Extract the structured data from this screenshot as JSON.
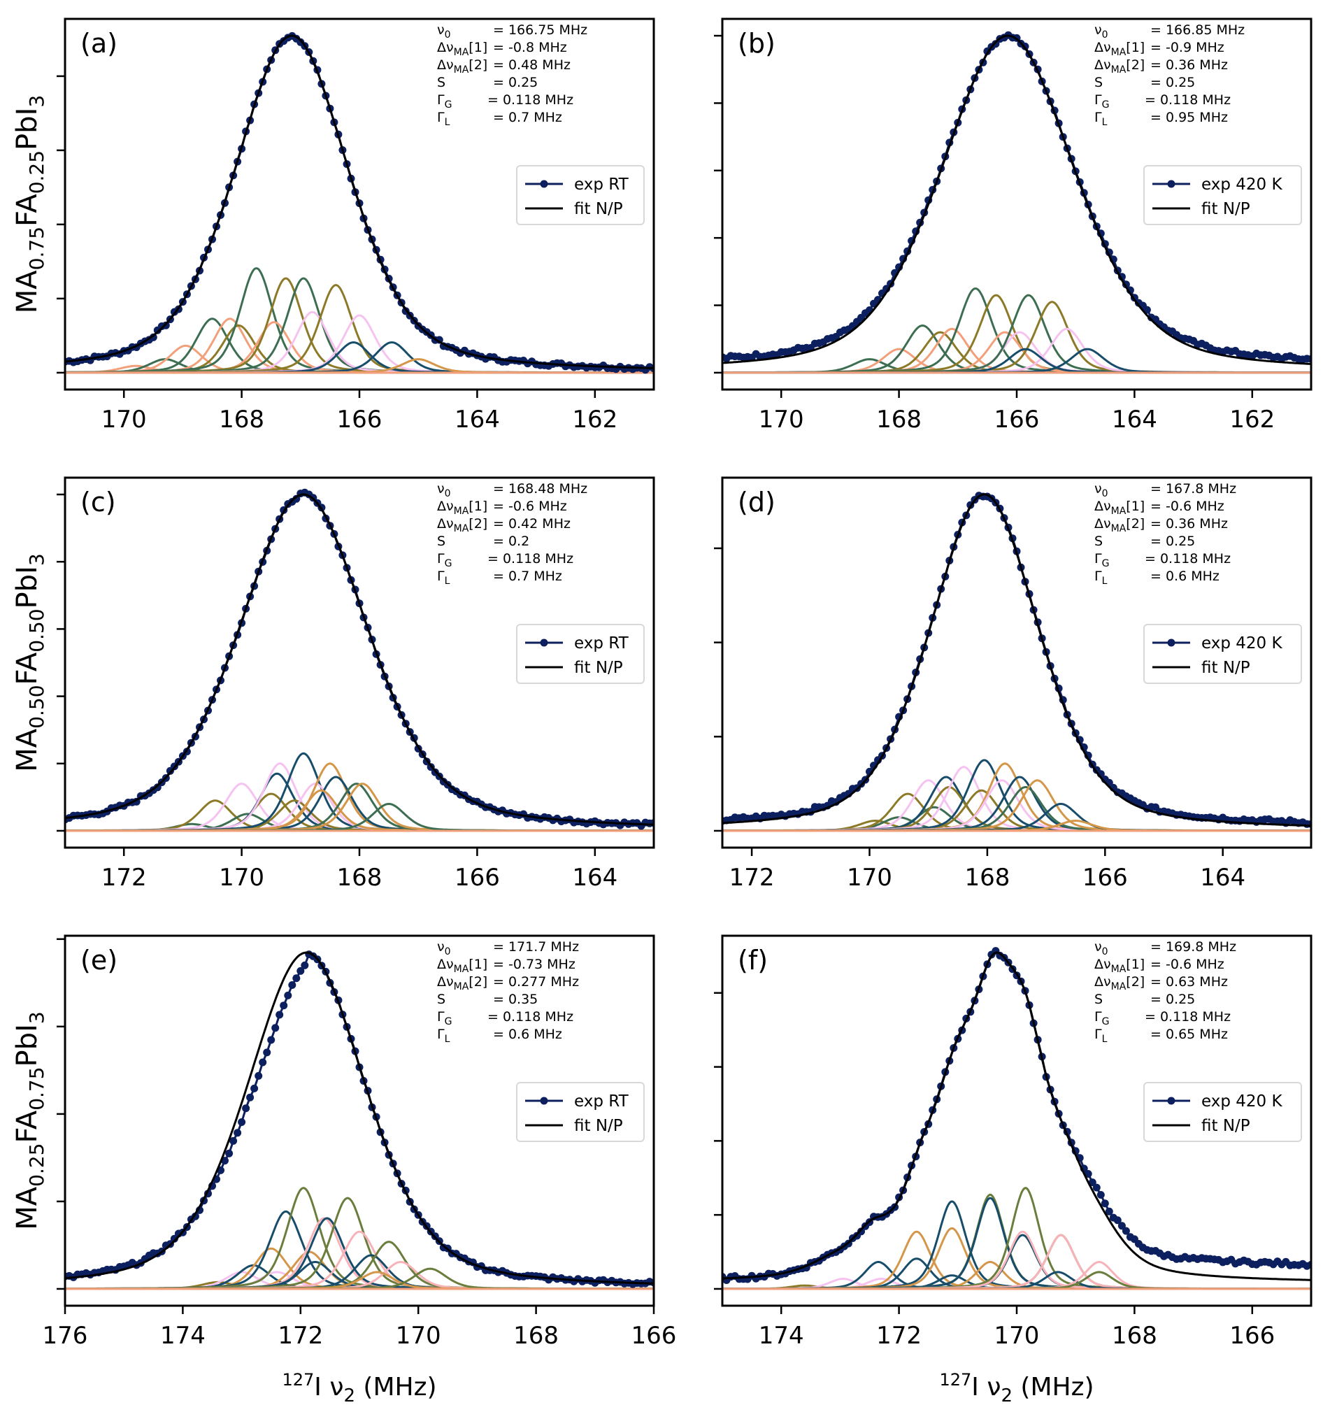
{
  "figure": {
    "colors": {
      "exp": "#0c1f5e",
      "fit": "#000000",
      "components": [
        "#3d6e52",
        "#8c7a28",
        "#f2a07b",
        "#f6c3f0",
        "#174d6b",
        "#d4974a",
        "#6a7d3c",
        "#f7b3b9"
      ]
    },
    "row_labels": [
      {
        "base": "MA",
        "sub1": "0.75",
        "mid": "FA",
        "sub2": "0.25",
        "end": "PbI",
        "sub3": "3"
      },
      {
        "base": "MA",
        "sub1": "0.50",
        "mid": "FA",
        "sub2": "0.50",
        "end": "PbI",
        "sub3": "3"
      },
      {
        "base": "MA",
        "sub1": "0.25",
        "mid": "FA",
        "sub2": "0.75",
        "end": "PbI",
        "sub3": "3"
      }
    ],
    "xlabel": {
      "sup": "127",
      "main": "I ν",
      "sub": "2",
      "unit": " (MHz)"
    }
  },
  "chart_data": [
    {
      "id": "a",
      "tag": "(a)",
      "type": "line",
      "xlim": [
        171,
        161
      ],
      "xticks": [
        170,
        168,
        166,
        164,
        162
      ],
      "ylim": [
        -0.05,
        1.05
      ],
      "yticks": [
        0,
        0.22,
        0.44,
        0.66,
        0.88
      ],
      "params": [
        {
          "name": "ν0",
          "value": "= 166.75 MHz"
        },
        {
          "name": "ΔνMA[1]",
          "value": "= -0.8 MHz"
        },
        {
          "name": "ΔνMA[2]",
          "value": "= 0.48 MHz"
        },
        {
          "name": "S",
          "value": "= 0.25"
        },
        {
          "name": "ΓG",
          "value": "= 0.118 MHz"
        },
        {
          "name": "ΓL",
          "value": "= 0.7 MHz"
        }
      ],
      "legend": [
        "exp RT",
        "fit N/P"
      ],
      "envelope": {
        "center": 167.15,
        "height": 1.0,
        "width": 1.15,
        "baseline": 0.04
      },
      "exp_offset": 0.0,
      "components": [
        {
          "c": 169.8,
          "h": 0.02,
          "color": 2
        },
        {
          "c": 169.3,
          "h": 0.04,
          "color": 0
        },
        {
          "c": 168.95,
          "h": 0.08,
          "color": 2
        },
        {
          "c": 168.5,
          "h": 0.16,
          "color": 0
        },
        {
          "c": 168.2,
          "h": 0.16,
          "color": 2
        },
        {
          "c": 168.05,
          "h": 0.14,
          "color": 1
        },
        {
          "c": 167.75,
          "h": 0.31,
          "color": 0
        },
        {
          "c": 167.45,
          "h": 0.15,
          "color": 2
        },
        {
          "c": 167.25,
          "h": 0.28,
          "color": 1
        },
        {
          "c": 166.95,
          "h": 0.28,
          "color": 0
        },
        {
          "c": 166.8,
          "h": 0.18,
          "color": 3
        },
        {
          "c": 166.4,
          "h": 0.26,
          "color": 1
        },
        {
          "c": 166.0,
          "h": 0.17,
          "color": 3
        },
        {
          "c": 166.1,
          "h": 0.09,
          "color": 4
        },
        {
          "c": 165.45,
          "h": 0.09,
          "color": 4
        },
        {
          "c": 165.0,
          "h": 0.04,
          "color": 5
        }
      ]
    },
    {
      "id": "b",
      "tag": "(b)",
      "type": "line",
      "xlim": [
        171,
        161
      ],
      "xticks": [
        170,
        168,
        166,
        164,
        162
      ],
      "ylim": [
        -0.05,
        1.05
      ],
      "yticks": [
        0,
        0.2,
        0.4,
        0.6,
        0.8,
        1.0
      ],
      "params": [
        {
          "name": "ν0",
          "value": "= 166.85 MHz"
        },
        {
          "name": "ΔνMA[1]",
          "value": "= -0.9 MHz"
        },
        {
          "name": "ΔνMA[2]",
          "value": "= 0.36 MHz"
        },
        {
          "name": "S",
          "value": "= 0.25"
        },
        {
          "name": "ΓG",
          "value": "= 0.118 MHz"
        },
        {
          "name": "ΓL",
          "value": "= 0.95 MHz"
        }
      ],
      "legend": [
        "exp 420 K",
        "fit N/P"
      ],
      "envelope": {
        "center": 166.15,
        "height": 1.0,
        "width": 1.35,
        "baseline": 0.04
      },
      "exp_offset": 0.015,
      "components": [
        {
          "c": 168.5,
          "h": 0.04,
          "color": 0
        },
        {
          "c": 168.0,
          "h": 0.07,
          "color": 2
        },
        {
          "c": 167.6,
          "h": 0.14,
          "color": 0
        },
        {
          "c": 167.3,
          "h": 0.12,
          "color": 1
        },
        {
          "c": 167.1,
          "h": 0.13,
          "color": 2
        },
        {
          "c": 166.7,
          "h": 0.25,
          "color": 0
        },
        {
          "c": 166.35,
          "h": 0.23,
          "color": 1
        },
        {
          "c": 166.2,
          "h": 0.12,
          "color": 2
        },
        {
          "c": 165.95,
          "h": 0.12,
          "color": 3
        },
        {
          "c": 165.8,
          "h": 0.23,
          "color": 0
        },
        {
          "c": 165.4,
          "h": 0.21,
          "color": 1
        },
        {
          "c": 165.15,
          "h": 0.13,
          "color": 3
        },
        {
          "c": 165.85,
          "h": 0.07,
          "color": 4
        },
        {
          "c": 164.8,
          "h": 0.07,
          "color": 4
        }
      ]
    },
    {
      "id": "c",
      "tag": "(c)",
      "type": "line",
      "xlim": [
        173,
        163
      ],
      "xticks": [
        172,
        170,
        168,
        166,
        164
      ],
      "ylim": [
        -0.05,
        1.05
      ],
      "yticks": [
        0,
        0.2,
        0.4,
        0.6,
        0.8,
        1.0
      ],
      "params": [
        {
          "name": "ν0",
          "value": "= 168.48 MHz"
        },
        {
          "name": "ΔνMA[1]",
          "value": "= -0.6 MHz"
        },
        {
          "name": "ΔνMA[2]",
          "value": "= 0.42 MHz"
        },
        {
          "name": "S",
          "value": "= 0.2"
        },
        {
          "name": "ΓG",
          "value": "= 0.118 MHz"
        },
        {
          "name": "ΓL",
          "value": "= 0.7 MHz"
        }
      ],
      "legend": [
        "exp RT",
        "fit N/P"
      ],
      "envelope": {
        "center": 168.95,
        "height": 1.0,
        "width": 1.3,
        "baseline": 0.02
      },
      "exp_offset": 0.0,
      "components": [
        {
          "c": 170.85,
          "h": 0.02,
          "color": 0
        },
        {
          "c": 170.45,
          "h": 0.09,
          "color": 1
        },
        {
          "c": 170.0,
          "h": 0.14,
          "color": 3
        },
        {
          "c": 169.9,
          "h": 0.05,
          "color": 0
        },
        {
          "c": 169.5,
          "h": 0.11,
          "color": 1
        },
        {
          "c": 169.4,
          "h": 0.17,
          "color": 4
        },
        {
          "c": 169.35,
          "h": 0.2,
          "color": 3
        },
        {
          "c": 169.1,
          "h": 0.09,
          "color": 1
        },
        {
          "c": 168.95,
          "h": 0.23,
          "color": 4
        },
        {
          "c": 168.75,
          "h": 0.14,
          "color": 3
        },
        {
          "c": 168.5,
          "h": 0.2,
          "color": 5
        },
        {
          "c": 168.4,
          "h": 0.16,
          "color": 4
        },
        {
          "c": 168.65,
          "h": 0.12,
          "color": 5
        },
        {
          "c": 168.05,
          "h": 0.14,
          "color": 0
        },
        {
          "c": 167.95,
          "h": 0.14,
          "color": 5
        },
        {
          "c": 167.5,
          "h": 0.08,
          "color": 0
        }
      ]
    },
    {
      "id": "d",
      "tag": "(d)",
      "type": "line",
      "xlim": [
        172.5,
        162.5
      ],
      "xticks": [
        172,
        170,
        168,
        166,
        164
      ],
      "ylim": [
        -0.05,
        1.05
      ],
      "yticks": [
        0,
        0.28,
        0.56,
        0.84
      ],
      "params": [
        {
          "name": "ν0",
          "value": "= 167.8 MHz"
        },
        {
          "name": "ΔνMA[1]",
          "value": "= -0.6 MHz"
        },
        {
          "name": "ΔνMA[2]",
          "value": "= 0.36 MHz"
        },
        {
          "name": "S",
          "value": "= 0.25"
        },
        {
          "name": "ΓG",
          "value": "= 0.118 MHz"
        },
        {
          "name": "ΓL",
          "value": "= 0.6 MHz"
        }
      ],
      "legend": [
        "exp 420 K",
        "fit N/P"
      ],
      "envelope": {
        "center": 168.05,
        "height": 1.0,
        "width": 1.1,
        "baseline": 0.02
      },
      "exp_offset": 0.01,
      "components": [
        {
          "c": 169.9,
          "h": 0.03,
          "color": 1
        },
        {
          "c": 169.5,
          "h": 0.04,
          "color": 0
        },
        {
          "c": 169.35,
          "h": 0.11,
          "color": 1
        },
        {
          "c": 169.0,
          "h": 0.15,
          "color": 3
        },
        {
          "c": 168.9,
          "h": 0.07,
          "color": 0
        },
        {
          "c": 168.7,
          "h": 0.16,
          "color": 4
        },
        {
          "c": 168.65,
          "h": 0.13,
          "color": 1
        },
        {
          "c": 168.4,
          "h": 0.19,
          "color": 3
        },
        {
          "c": 168.1,
          "h": 0.12,
          "color": 1
        },
        {
          "c": 168.05,
          "h": 0.21,
          "color": 4
        },
        {
          "c": 167.7,
          "h": 0.2,
          "color": 5
        },
        {
          "c": 167.75,
          "h": 0.15,
          "color": 3
        },
        {
          "c": 167.45,
          "h": 0.16,
          "color": 4
        },
        {
          "c": 167.35,
          "h": 0.13,
          "color": 0
        },
        {
          "c": 167.15,
          "h": 0.15,
          "color": 5
        },
        {
          "c": 166.75,
          "h": 0.08,
          "color": 4
        },
        {
          "c": 166.5,
          "h": 0.03,
          "color": 5
        }
      ]
    },
    {
      "id": "e",
      "tag": "(e)",
      "type": "line",
      "xlim": [
        176,
        166
      ],
      "xticks": [
        176,
        174,
        172,
        170,
        168,
        166
      ],
      "ylim": [
        -0.05,
        1.05
      ],
      "yticks": [
        0,
        0.26,
        0.52,
        0.78,
        1.04
      ],
      "params": [
        {
          "name": "ν0",
          "value": "= 171.7 MHz"
        },
        {
          "name": "ΔνMA[1]",
          "value": "= -0.73 MHz"
        },
        {
          "name": "ΔνMA[2]",
          "value": "= 0.277 MHz"
        },
        {
          "name": "S",
          "value": "= 0.35"
        },
        {
          "name": "ΓG",
          "value": "= 0.118 MHz"
        },
        {
          "name": "ΓL",
          "value": "= 0.6 MHz"
        }
      ],
      "legend": [
        "exp RT",
        "fit N/P"
      ],
      "envelope": {
        "center": 171.9,
        "height": 0.97,
        "width": 1.2,
        "baseline": 0.02
      },
      "exp_shift": -0.25,
      "exp_offset": 0.0,
      "components": [
        {
          "c": 173.4,
          "h": 0.02,
          "color": 1
        },
        {
          "c": 173.0,
          "h": 0.05,
          "color": 3
        },
        {
          "c": 172.8,
          "h": 0.07,
          "color": 4
        },
        {
          "c": 172.5,
          "h": 0.12,
          "color": 5
        },
        {
          "c": 172.25,
          "h": 0.23,
          "color": 4
        },
        {
          "c": 172.4,
          "h": 0.05,
          "color": 3
        },
        {
          "c": 171.95,
          "h": 0.3,
          "color": 6
        },
        {
          "c": 171.85,
          "h": 0.11,
          "color": 5
        },
        {
          "c": 171.75,
          "h": 0.08,
          "color": 4
        },
        {
          "c": 171.6,
          "h": 0.21,
          "color": 7
        },
        {
          "c": 171.55,
          "h": 0.21,
          "color": 4
        },
        {
          "c": 171.2,
          "h": 0.27,
          "color": 6
        },
        {
          "c": 171.0,
          "h": 0.17,
          "color": 7
        },
        {
          "c": 170.8,
          "h": 0.1,
          "color": 4
        },
        {
          "c": 170.5,
          "h": 0.14,
          "color": 6
        },
        {
          "c": 170.3,
          "h": 0.08,
          "color": 7
        },
        {
          "c": 170.7,
          "h": 0.05,
          "color": 5
        },
        {
          "c": 169.8,
          "h": 0.06,
          "color": 6
        }
      ]
    },
    {
      "id": "f",
      "tag": "(f)",
      "type": "line",
      "xlim": [
        175,
        165
      ],
      "xticks": [
        174,
        172,
        170,
        168,
        166
      ],
      "ylim": [
        -0.05,
        1.05
      ],
      "yticks": [
        0,
        0.22,
        0.44,
        0.66,
        0.88
      ],
      "params": [
        {
          "name": "ν0",
          "value": "= 169.8 MHz"
        },
        {
          "name": "ΔνMA[1]",
          "value": "= -0.6 MHz"
        },
        {
          "name": "ΔνMA[2]",
          "value": "= 0.63 MHz"
        },
        {
          "name": "S",
          "value": "= 0.25"
        },
        {
          "name": "ΓG",
          "value": "= 0.118 MHz"
        },
        {
          "name": "ΓL",
          "value": "= 0.65 MHz"
        }
      ],
      "legend": [
        "exp 420 K",
        "fit N/P"
      ],
      "multipeak": true,
      "fit_peaks": [
        {
          "c": 173.1,
          "h": 0.05,
          "w": 0.5
        },
        {
          "c": 172.45,
          "h": 0.11,
          "w": 0.35
        },
        {
          "c": 171.65,
          "h": 0.17,
          "w": 0.35
        },
        {
          "c": 171.05,
          "h": 0.33,
          "w": 0.4
        },
        {
          "c": 170.4,
          "h": 0.48,
          "w": 0.38
        },
        {
          "c": 169.85,
          "h": 0.43,
          "w": 0.38
        },
        {
          "c": 169.2,
          "h": 0.2,
          "w": 0.45
        },
        {
          "c": 168.6,
          "h": 0.1,
          "w": 0.5
        }
      ],
      "fit_baseline": 0.02,
      "exp_tail": 0.06,
      "components": [
        {
          "c": 173.6,
          "h": 0.01,
          "color": 1
        },
        {
          "c": 172.95,
          "h": 0.03,
          "color": 3
        },
        {
          "c": 172.35,
          "h": 0.08,
          "color": 4
        },
        {
          "c": 172.3,
          "h": 0.03,
          "color": 3
        },
        {
          "c": 171.7,
          "h": 0.17,
          "color": 5
        },
        {
          "c": 171.7,
          "h": 0.09,
          "color": 4
        },
        {
          "c": 171.1,
          "h": 0.26,
          "color": 4
        },
        {
          "c": 171.1,
          "h": 0.18,
          "color": 5
        },
        {
          "c": 171.1,
          "h": 0.04,
          "color": 4
        },
        {
          "c": 170.45,
          "h": 0.28,
          "color": 6
        },
        {
          "c": 170.45,
          "h": 0.27,
          "color": 4
        },
        {
          "c": 170.45,
          "h": 0.08,
          "color": 5
        },
        {
          "c": 169.85,
          "h": 0.3,
          "color": 6
        },
        {
          "c": 169.9,
          "h": 0.16,
          "color": 4
        },
        {
          "c": 169.9,
          "h": 0.17,
          "color": 7
        },
        {
          "c": 169.25,
          "h": 0.16,
          "color": 6
        },
        {
          "c": 169.25,
          "h": 0.16,
          "color": 7
        },
        {
          "c": 169.3,
          "h": 0.05,
          "color": 4
        },
        {
          "c": 168.6,
          "h": 0.08,
          "color": 7
        },
        {
          "c": 168.6,
          "h": 0.05,
          "color": 6
        }
      ]
    }
  ]
}
